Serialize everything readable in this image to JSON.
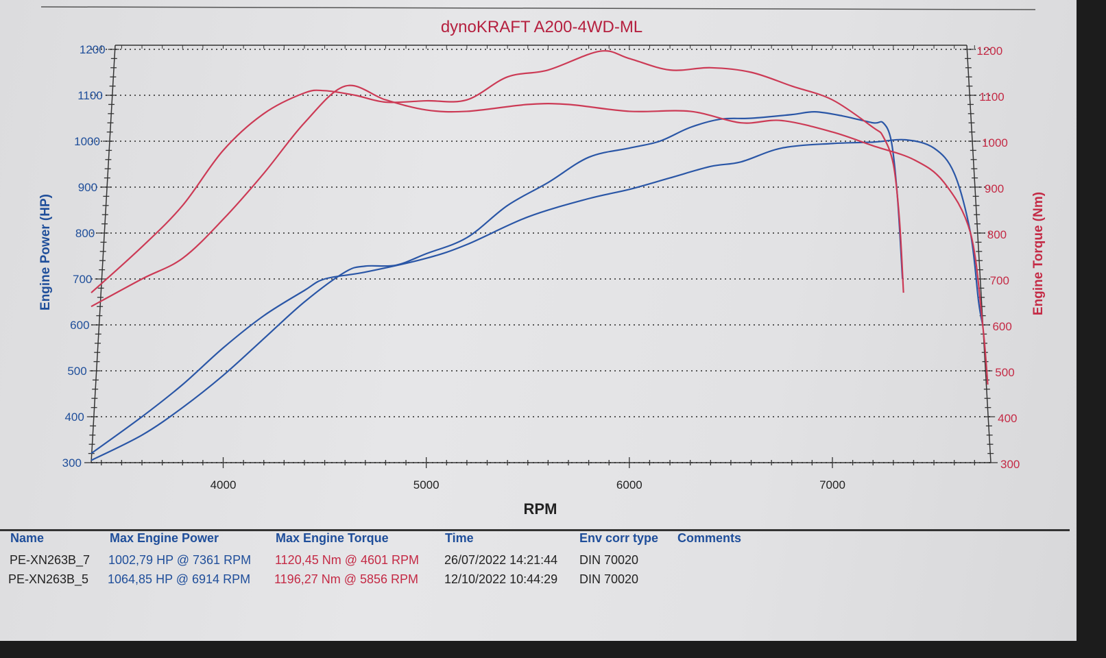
{
  "chart_data": {
    "type": "line",
    "title": "dynoKRAFT A200-4WD-ML",
    "xlabel": "RPM",
    "ylabel_left": "Engine Power (HP)",
    "ylabel_right": "Engine Torque (Nm)",
    "xlim": [
      3350,
      7780
    ],
    "ylim_left": [
      300,
      1200
    ],
    "ylim_right": [
      300,
      1200
    ],
    "x_ticks": [
      4000,
      5000,
      6000,
      7000
    ],
    "y_ticks_left": [
      300,
      400,
      500,
      600,
      700,
      800,
      900,
      1000,
      1100,
      1200
    ],
    "y_ticks_right": [
      300,
      400,
      500,
      600,
      700,
      800,
      900,
      1000,
      1100,
      1200
    ],
    "grid": "horizontal dotted",
    "colors": {
      "power": "#2a56a6",
      "torque": "#cc3a55",
      "title": "#b5203f"
    },
    "series": [
      {
        "name": "PE-XN263B_5 Power",
        "axis": "left",
        "color": "#2a56a6",
        "x": [
          3350,
          3600,
          3800,
          4000,
          4200,
          4400,
          4600,
          4700,
          4850,
          5000,
          5200,
          5400,
          5600,
          5800,
          6000,
          6150,
          6300,
          6450,
          6600,
          6800,
          6914,
          7050,
          7200,
          7250,
          7290,
          7320,
          7345
        ],
        "y": [
          305,
          360,
          420,
          490,
          570,
          650,
          715,
          728,
          730,
          755,
          790,
          860,
          910,
          965,
          985,
          1000,
          1030,
          1048,
          1050,
          1058,
          1064,
          1055,
          1040,
          1040,
          1000,
          880,
          700
        ]
      },
      {
        "name": "PE-XN263B_7 Power",
        "axis": "left",
        "color": "#2a56a6",
        "x": [
          3350,
          3600,
          3800,
          4000,
          4200,
          4400,
          4500,
          4700,
          5000,
          5200,
          5500,
          5800,
          6000,
          6200,
          6400,
          6550,
          6750,
          7000,
          7200,
          7361,
          7500,
          7600,
          7680,
          7720,
          7740
        ],
        "y": [
          320,
          400,
          470,
          550,
          620,
          675,
          700,
          715,
          745,
          775,
          835,
          875,
          895,
          920,
          945,
          955,
          985,
          995,
          998,
          1003,
          985,
          930,
          800,
          650,
          600
        ]
      },
      {
        "name": "PE-XN263B_5 Torque",
        "axis": "right",
        "color": "#cc3a55",
        "x": [
          3350,
          3600,
          3800,
          4000,
          4200,
          4400,
          4500,
          4650,
          4800,
          5000,
          5200,
          5400,
          5600,
          5856,
          6000,
          6200,
          6400,
          6600,
          6800,
          7000,
          7200,
          7250,
          7300,
          7330,
          7350
        ],
        "y": [
          670,
          770,
          860,
          980,
          1060,
          1105,
          1110,
          1100,
          1085,
          1088,
          1090,
          1140,
          1155,
          1196,
          1180,
          1155,
          1160,
          1150,
          1120,
          1090,
          1030,
          1010,
          950,
          830,
          670
        ]
      },
      {
        "name": "PE-XN263B_7 Torque",
        "axis": "right",
        "color": "#cc3a55",
        "x": [
          3350,
          3600,
          3800,
          4000,
          4200,
          4400,
          4601,
          4800,
          5000,
          5200,
          5500,
          5700,
          6000,
          6300,
          6550,
          6750,
          7000,
          7200,
          7400,
          7550,
          7680,
          7740,
          7765
        ],
        "y": [
          640,
          700,
          745,
          830,
          930,
          1040,
          1120,
          1090,
          1068,
          1065,
          1080,
          1080,
          1065,
          1065,
          1040,
          1045,
          1020,
          990,
          960,
          910,
          800,
          600,
          470
        ]
      }
    ]
  },
  "table": {
    "headers": [
      "Name",
      "Max Engine Power",
      "Max Engine Torque",
      "Time",
      "Env corr type",
      "Comments"
    ],
    "rows": [
      [
        "PE-XN263B_7",
        "1002,79 HP @ 7361 RPM",
        "1120,45 Nm @ 4601 RPM",
        "26/07/2022 14:21:44",
        "DIN 70020",
        ""
      ],
      [
        "PE-XN263B_5",
        "1064,85 HP @ 6914 RPM",
        "1196,27 Nm @ 5856 RPM",
        "12/10/2022 10:44:29",
        "DIN 70020",
        ""
      ]
    ]
  }
}
